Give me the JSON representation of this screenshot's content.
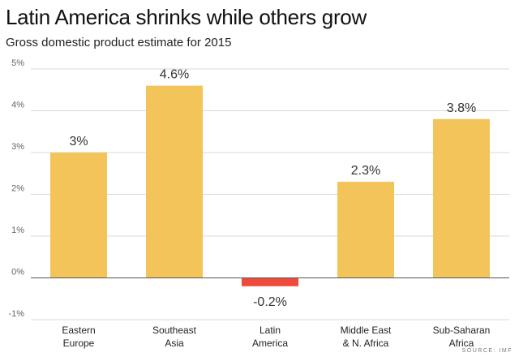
{
  "title": "Latin America shrinks while others grow",
  "subtitle": "Gross domestic product estimate for 2015",
  "source": "SOURCE: IMF",
  "colors": {
    "positive": "#f2c45a",
    "negative": "#ee4a3c",
    "grid": "#d9d9d9",
    "zero": "#555555"
  },
  "chart_data": {
    "type": "bar",
    "title": "Latin America shrinks while others grow",
    "subtitle": "Gross domestic product estimate for 2015",
    "categories": [
      "Eastern\nEurope",
      "Southeast\nAsia",
      "Latin\nAmerica",
      "Middle East\n& N. Africa",
      "Sub-Saharan\nAfrica"
    ],
    "values": [
      3,
      4.6,
      -0.2,
      2.3,
      3.8
    ],
    "data_labels": [
      "3%",
      "4.6%",
      "-0.2%",
      "2.3%",
      "3.8%"
    ],
    "ylim": [
      -1,
      5
    ],
    "yticks": [
      -1,
      0,
      1,
      2,
      3,
      4,
      5
    ],
    "ytick_labels": [
      "-1%",
      "0%",
      "1%",
      "2%",
      "3%",
      "4%",
      "5%"
    ],
    "grid": true,
    "legend": "none"
  }
}
